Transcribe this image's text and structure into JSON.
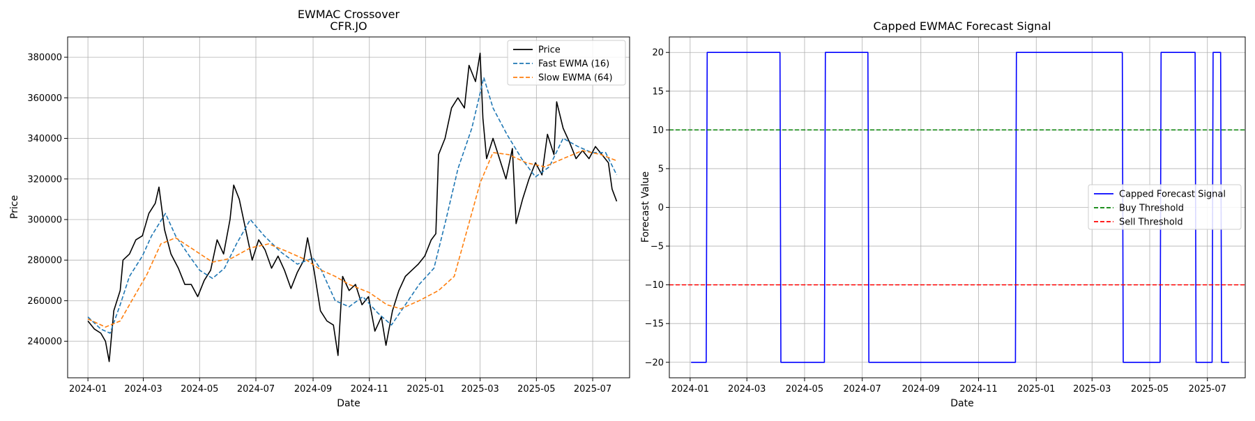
{
  "chart_data": [
    {
      "type": "line",
      "title": "EWMAC Crossover",
      "subtitle": "CFR.JO",
      "xlabel": "Date",
      "ylabel": "Price",
      "x_range": [
        "2023-12-10",
        "2025-08-10"
      ],
      "ylim": [
        222000,
        390000
      ],
      "x_ticks": [
        "2024-01-01",
        "2024-03-01",
        "2024-05-01",
        "2024-07-01",
        "2024-09-01",
        "2024-11-01",
        "2025-01-01",
        "2025-03-01",
        "2025-05-01",
        "2025-07-01"
      ],
      "x_tick_labels": [
        "2024-01",
        "2024-03",
        "2024-05",
        "2024-07",
        "2024-09",
        "2024-11",
        "2025-01",
        "2025-03",
        "2025-05",
        "2025-07"
      ],
      "y_ticks": [
        240000,
        260000,
        280000,
        300000,
        320000,
        340000,
        360000,
        380000
      ],
      "y_tick_labels": [
        "240000",
        "260000",
        "280000",
        "300000",
        "320000",
        "340000",
        "360000",
        "380000"
      ],
      "grid": true,
      "legend_placement": "top-right",
      "series": [
        {
          "name": "Price",
          "color": "#000000",
          "style": "solid",
          "points": [
            [
              "2024-01-01",
              250000
            ],
            [
              "2024-01-08",
              246000
            ],
            [
              "2024-01-15",
              244000
            ],
            [
              "2024-01-20",
              240000
            ],
            [
              "2024-01-24",
              230000
            ],
            [
              "2024-01-29",
              255000
            ],
            [
              "2024-02-05",
              265000
            ],
            [
              "2024-02-08",
              280000
            ],
            [
              "2024-02-15",
              283000
            ],
            [
              "2024-02-22",
              290000
            ],
            [
              "2024-02-29",
              292000
            ],
            [
              "2024-03-07",
              303000
            ],
            [
              "2024-03-14",
              308000
            ],
            [
              "2024-03-18",
              316000
            ],
            [
              "2024-03-24",
              295000
            ],
            [
              "2024-03-31",
              283000
            ],
            [
              "2024-04-08",
              276000
            ],
            [
              "2024-04-15",
              268000
            ],
            [
              "2024-04-22",
              268000
            ],
            [
              "2024-04-29",
              262000
            ],
            [
              "2024-05-06",
              270000
            ],
            [
              "2024-05-13",
              275000
            ],
            [
              "2024-05-20",
              290000
            ],
            [
              "2024-05-27",
              283000
            ],
            [
              "2024-06-03",
              300000
            ],
            [
              "2024-06-07",
              317000
            ],
            [
              "2024-06-13",
              310000
            ],
            [
              "2024-06-20",
              295000
            ],
            [
              "2024-06-27",
              280000
            ],
            [
              "2024-07-04",
              290000
            ],
            [
              "2024-07-11",
              285000
            ],
            [
              "2024-07-18",
              276000
            ],
            [
              "2024-07-25",
              282000
            ],
            [
              "2024-08-01",
              275000
            ],
            [
              "2024-08-08",
              266000
            ],
            [
              "2024-08-15",
              274000
            ],
            [
              "2024-08-22",
              280000
            ],
            [
              "2024-08-26",
              291000
            ],
            [
              "2024-09-02",
              275000
            ],
            [
              "2024-09-09",
              255000
            ],
            [
              "2024-09-16",
              250000
            ],
            [
              "2024-09-23",
              248000
            ],
            [
              "2024-09-28",
              233000
            ],
            [
              "2024-10-03",
              272000
            ],
            [
              "2024-10-10",
              265000
            ],
            [
              "2024-10-17",
              268000
            ],
            [
              "2024-10-24",
              258000
            ],
            [
              "2024-10-31",
              262000
            ],
            [
              "2024-11-07",
              245000
            ],
            [
              "2024-11-14",
              252000
            ],
            [
              "2024-11-19",
              238000
            ],
            [
              "2024-11-26",
              255000
            ],
            [
              "2024-12-03",
              265000
            ],
            [
              "2024-12-10",
              272000
            ],
            [
              "2024-12-17",
              275000
            ],
            [
              "2024-12-24",
              278000
            ],
            [
              "2024-12-31",
              282000
            ],
            [
              "2025-01-07",
              290000
            ],
            [
              "2025-01-12",
              293000
            ],
            [
              "2025-01-15",
              332000
            ],
            [
              "2025-01-22",
              340000
            ],
            [
              "2025-01-29",
              355000
            ],
            [
              "2025-02-05",
              360000
            ],
            [
              "2025-02-12",
              355000
            ],
            [
              "2025-02-17",
              376000
            ],
            [
              "2025-02-24",
              368000
            ],
            [
              "2025-03-01",
              382000
            ],
            [
              "2025-03-04",
              350000
            ],
            [
              "2025-03-08",
              330000
            ],
            [
              "2025-03-15",
              340000
            ],
            [
              "2025-03-22",
              330000
            ],
            [
              "2025-03-29",
              320000
            ],
            [
              "2025-04-05",
              335000
            ],
            [
              "2025-04-09",
              298000
            ],
            [
              "2025-04-16",
              310000
            ],
            [
              "2025-04-23",
              320000
            ],
            [
              "2025-04-30",
              328000
            ],
            [
              "2025-05-07",
              322000
            ],
            [
              "2025-05-13",
              342000
            ],
            [
              "2025-05-20",
              332000
            ],
            [
              "2025-05-23",
              358000
            ],
            [
              "2025-05-30",
              345000
            ],
            [
              "2025-06-06",
              338000
            ],
            [
              "2025-06-13",
              330000
            ],
            [
              "2025-06-20",
              334000
            ],
            [
              "2025-06-27",
              330000
            ],
            [
              "2025-07-04",
              336000
            ],
            [
              "2025-07-11",
              332000
            ],
            [
              "2025-07-18",
              328000
            ],
            [
              "2025-07-22",
              315000
            ],
            [
              "2025-07-27",
              309000
            ]
          ]
        },
        {
          "name": "Fast EWMA (16)",
          "color": "#1f77b4",
          "style": "dashed",
          "points": [
            [
              "2024-01-01",
              252000
            ],
            [
              "2024-01-15",
              246000
            ],
            [
              "2024-01-25",
              244000
            ],
            [
              "2024-02-05",
              258000
            ],
            [
              "2024-02-15",
              272000
            ],
            [
              "2024-02-29",
              282000
            ],
            [
              "2024-03-10",
              292000
            ],
            [
              "2024-03-25",
              303000
            ],
            [
              "2024-04-05",
              292000
            ],
            [
              "2024-04-20",
              282000
            ],
            [
              "2024-05-01",
              275000
            ],
            [
              "2024-05-15",
              271000
            ],
            [
              "2024-05-28",
              276000
            ],
            [
              "2024-06-10",
              288000
            ],
            [
              "2024-06-25",
              300000
            ],
            [
              "2024-07-10",
              292000
            ],
            [
              "2024-07-28",
              284000
            ],
            [
              "2024-08-15",
              278000
            ],
            [
              "2024-09-01",
              281000
            ],
            [
              "2024-09-10",
              275000
            ],
            [
              "2024-09-25",
              260000
            ],
            [
              "2024-10-10",
              257000
            ],
            [
              "2024-10-25",
              262000
            ],
            [
              "2024-11-10",
              254000
            ],
            [
              "2024-11-25",
              248000
            ],
            [
              "2024-12-10",
              258000
            ],
            [
              "2024-12-25",
              268000
            ],
            [
              "2025-01-10",
              276000
            ],
            [
              "2025-01-22",
              298000
            ],
            [
              "2025-02-05",
              325000
            ],
            [
              "2025-02-20",
              345000
            ],
            [
              "2025-03-05",
              370000
            ],
            [
              "2025-03-15",
              355000
            ],
            [
              "2025-03-30",
              342000
            ],
            [
              "2025-04-15",
              330000
            ],
            [
              "2025-04-30",
              321000
            ],
            [
              "2025-05-15",
              326000
            ],
            [
              "2025-05-30",
              340000
            ],
            [
              "2025-06-15",
              336000
            ],
            [
              "2025-06-30",
              333000
            ],
            [
              "2025-07-15",
              333000
            ],
            [
              "2025-07-27",
              322000
            ]
          ]
        },
        {
          "name": "Slow EWMA (64)",
          "color": "#ff7f0e",
          "style": "dashed",
          "points": [
            [
              "2024-01-01",
              251000
            ],
            [
              "2024-01-20",
              247000
            ],
            [
              "2024-02-05",
              250000
            ],
            [
              "2024-02-20",
              262000
            ],
            [
              "2024-03-05",
              273000
            ],
            [
              "2024-03-20",
              288000
            ],
            [
              "2024-04-05",
              291000
            ],
            [
              "2024-04-25",
              285000
            ],
            [
              "2024-05-15",
              279000
            ],
            [
              "2024-06-05",
              281000
            ],
            [
              "2024-06-25",
              286000
            ],
            [
              "2024-07-15",
              288000
            ],
            [
              "2024-08-05",
              284000
            ],
            [
              "2024-08-25",
              280000
            ],
            [
              "2024-09-10",
              275000
            ],
            [
              "2024-09-25",
              272000
            ],
            [
              "2024-10-10",
              268000
            ],
            [
              "2024-11-01",
              264000
            ],
            [
              "2024-11-20",
              258000
            ],
            [
              "2024-12-05",
              256000
            ],
            [
              "2024-12-25",
              260000
            ],
            [
              "2025-01-15",
              265000
            ],
            [
              "2025-02-01",
              272000
            ],
            [
              "2025-02-15",
              295000
            ],
            [
              "2025-03-01",
              318000
            ],
            [
              "2025-03-15",
              333000
            ],
            [
              "2025-04-01",
              332000
            ],
            [
              "2025-04-20",
              328000
            ],
            [
              "2025-05-10",
              326000
            ],
            [
              "2025-05-30",
              330000
            ],
            [
              "2025-06-20",
              334000
            ],
            [
              "2025-07-10",
              332000
            ],
            [
              "2025-07-27",
              329000
            ]
          ]
        }
      ]
    },
    {
      "type": "line",
      "title": "Capped EWMAC Forecast Signal",
      "xlabel": "Date",
      "ylabel": "Forecast Value",
      "x_range": [
        "2023-12-10",
        "2025-08-10"
      ],
      "ylim": [
        -22,
        22
      ],
      "x_ticks": [
        "2024-01-01",
        "2024-03-01",
        "2024-05-01",
        "2024-07-01",
        "2024-09-01",
        "2024-11-01",
        "2025-01-01",
        "2025-03-01",
        "2025-05-01",
        "2025-07-01"
      ],
      "x_tick_labels": [
        "2024-01",
        "2024-03",
        "2024-05",
        "2024-07",
        "2024-09",
        "2024-11",
        "2025-01",
        "2025-03",
        "2025-05",
        "2025-07"
      ],
      "y_ticks": [
        -20,
        -15,
        -10,
        -5,
        0,
        5,
        10,
        15,
        20
      ],
      "y_tick_labels": [
        "−20",
        "−15",
        "−10",
        "−5",
        "0",
        "5",
        "10",
        "15",
        "20"
      ],
      "grid": true,
      "legend_placement": "center-right",
      "series": [
        {
          "name": "Capped Forecast Signal",
          "color": "#0000ff",
          "style": "solid",
          "points": [
            [
              "2024-01-02",
              -20
            ],
            [
              "2024-01-18",
              -20
            ],
            [
              "2024-01-19",
              20
            ],
            [
              "2024-04-05",
              20
            ],
            [
              "2024-04-06",
              -20
            ],
            [
              "2024-05-22",
              -20
            ],
            [
              "2024-05-23",
              20
            ],
            [
              "2024-07-07",
              20
            ],
            [
              "2024-07-08",
              -20
            ],
            [
              "2024-12-10",
              -20
            ],
            [
              "2024-12-11",
              20
            ],
            [
              "2025-04-02",
              20
            ],
            [
              "2025-04-03",
              -20
            ],
            [
              "2025-05-12",
              -20
            ],
            [
              "2025-05-13",
              20
            ],
            [
              "2025-06-18",
              20
            ],
            [
              "2025-06-19",
              -20
            ],
            [
              "2025-07-06",
              -20
            ],
            [
              "2025-07-07",
              20
            ],
            [
              "2025-07-15",
              20
            ],
            [
              "2025-07-16",
              -20
            ],
            [
              "2025-07-24",
              -20
            ]
          ]
        },
        {
          "name": "Buy Threshold",
          "color": "#008000",
          "style": "dashed",
          "hline": 10
        },
        {
          "name": "Sell Threshold",
          "color": "#ff0000",
          "style": "dashed",
          "hline": -10
        }
      ]
    }
  ]
}
